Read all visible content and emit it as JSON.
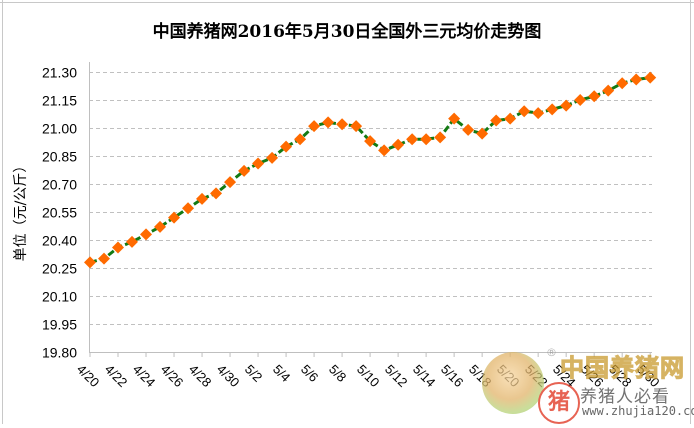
{
  "chart": {
    "title": "中国养猪网2016年5月30日全国外三元均价走势图",
    "ylabel": "单位（元/公斤）",
    "series_color": "#137a13",
    "marker_color": "#ff6a00",
    "grid_color": "#c0c0c0"
  },
  "watermark": {
    "brand": "中国养猪网",
    "registered": "®",
    "seal": "猪",
    "slogan": "养猪人必看",
    "url": "www.zhujia120.com"
  },
  "chart_data": {
    "type": "line",
    "title": "中国养猪网2016年5月30日全国外三元均价走势图",
    "xlabel": "",
    "ylabel": "单位（元/公斤）",
    "ylim": [
      19.8,
      21.3
    ],
    "yticks": [
      19.8,
      19.95,
      20.1,
      20.25,
      20.4,
      20.55,
      20.7,
      20.85,
      21.0,
      21.15,
      21.3
    ],
    "ytick_labels": [
      "19.80",
      "19.95",
      "20.10",
      "20.25",
      "20.40",
      "20.55",
      "20.70",
      "20.85",
      "21.00",
      "21.15",
      "21.30"
    ],
    "grid": true,
    "legend": "none",
    "xtick_labels": [
      "4/20",
      "4/22",
      "4/24",
      "4/26",
      "4/28",
      "4/30",
      "5/2",
      "5/4",
      "5/6",
      "5/8",
      "5/10",
      "5/12",
      "5/14",
      "5/16",
      "5/18",
      "5/20",
      "5/22",
      "5/24",
      "5/26",
      "5/28",
      "5/30"
    ],
    "x": [
      "4/20",
      "4/21",
      "4/22",
      "4/23",
      "4/24",
      "4/25",
      "4/26",
      "4/27",
      "4/28",
      "4/29",
      "4/30",
      "5/1",
      "5/2",
      "5/3",
      "5/4",
      "5/5",
      "5/6",
      "5/7",
      "5/8",
      "5/9",
      "5/10",
      "5/11",
      "5/12",
      "5/13",
      "5/14",
      "5/15",
      "5/16",
      "5/17",
      "5/18",
      "5/19",
      "5/20",
      "5/21",
      "5/22",
      "5/23",
      "5/24",
      "5/25",
      "5/26",
      "5/27",
      "5/28",
      "5/29",
      "5/30"
    ],
    "series": [
      {
        "name": "全国外三元均价",
        "values": [
          20.28,
          20.3,
          20.36,
          20.39,
          20.43,
          20.47,
          20.52,
          20.57,
          20.62,
          20.65,
          20.71,
          20.77,
          20.81,
          20.84,
          20.9,
          20.94,
          21.01,
          21.03,
          21.02,
          21.01,
          20.93,
          20.88,
          20.91,
          20.94,
          20.94,
          20.95,
          21.05,
          20.99,
          20.97,
          21.04,
          21.05,
          21.09,
          21.08,
          21.1,
          21.12,
          21.15,
          21.17,
          21.2,
          21.24,
          21.26,
          21.27
        ]
      }
    ]
  }
}
